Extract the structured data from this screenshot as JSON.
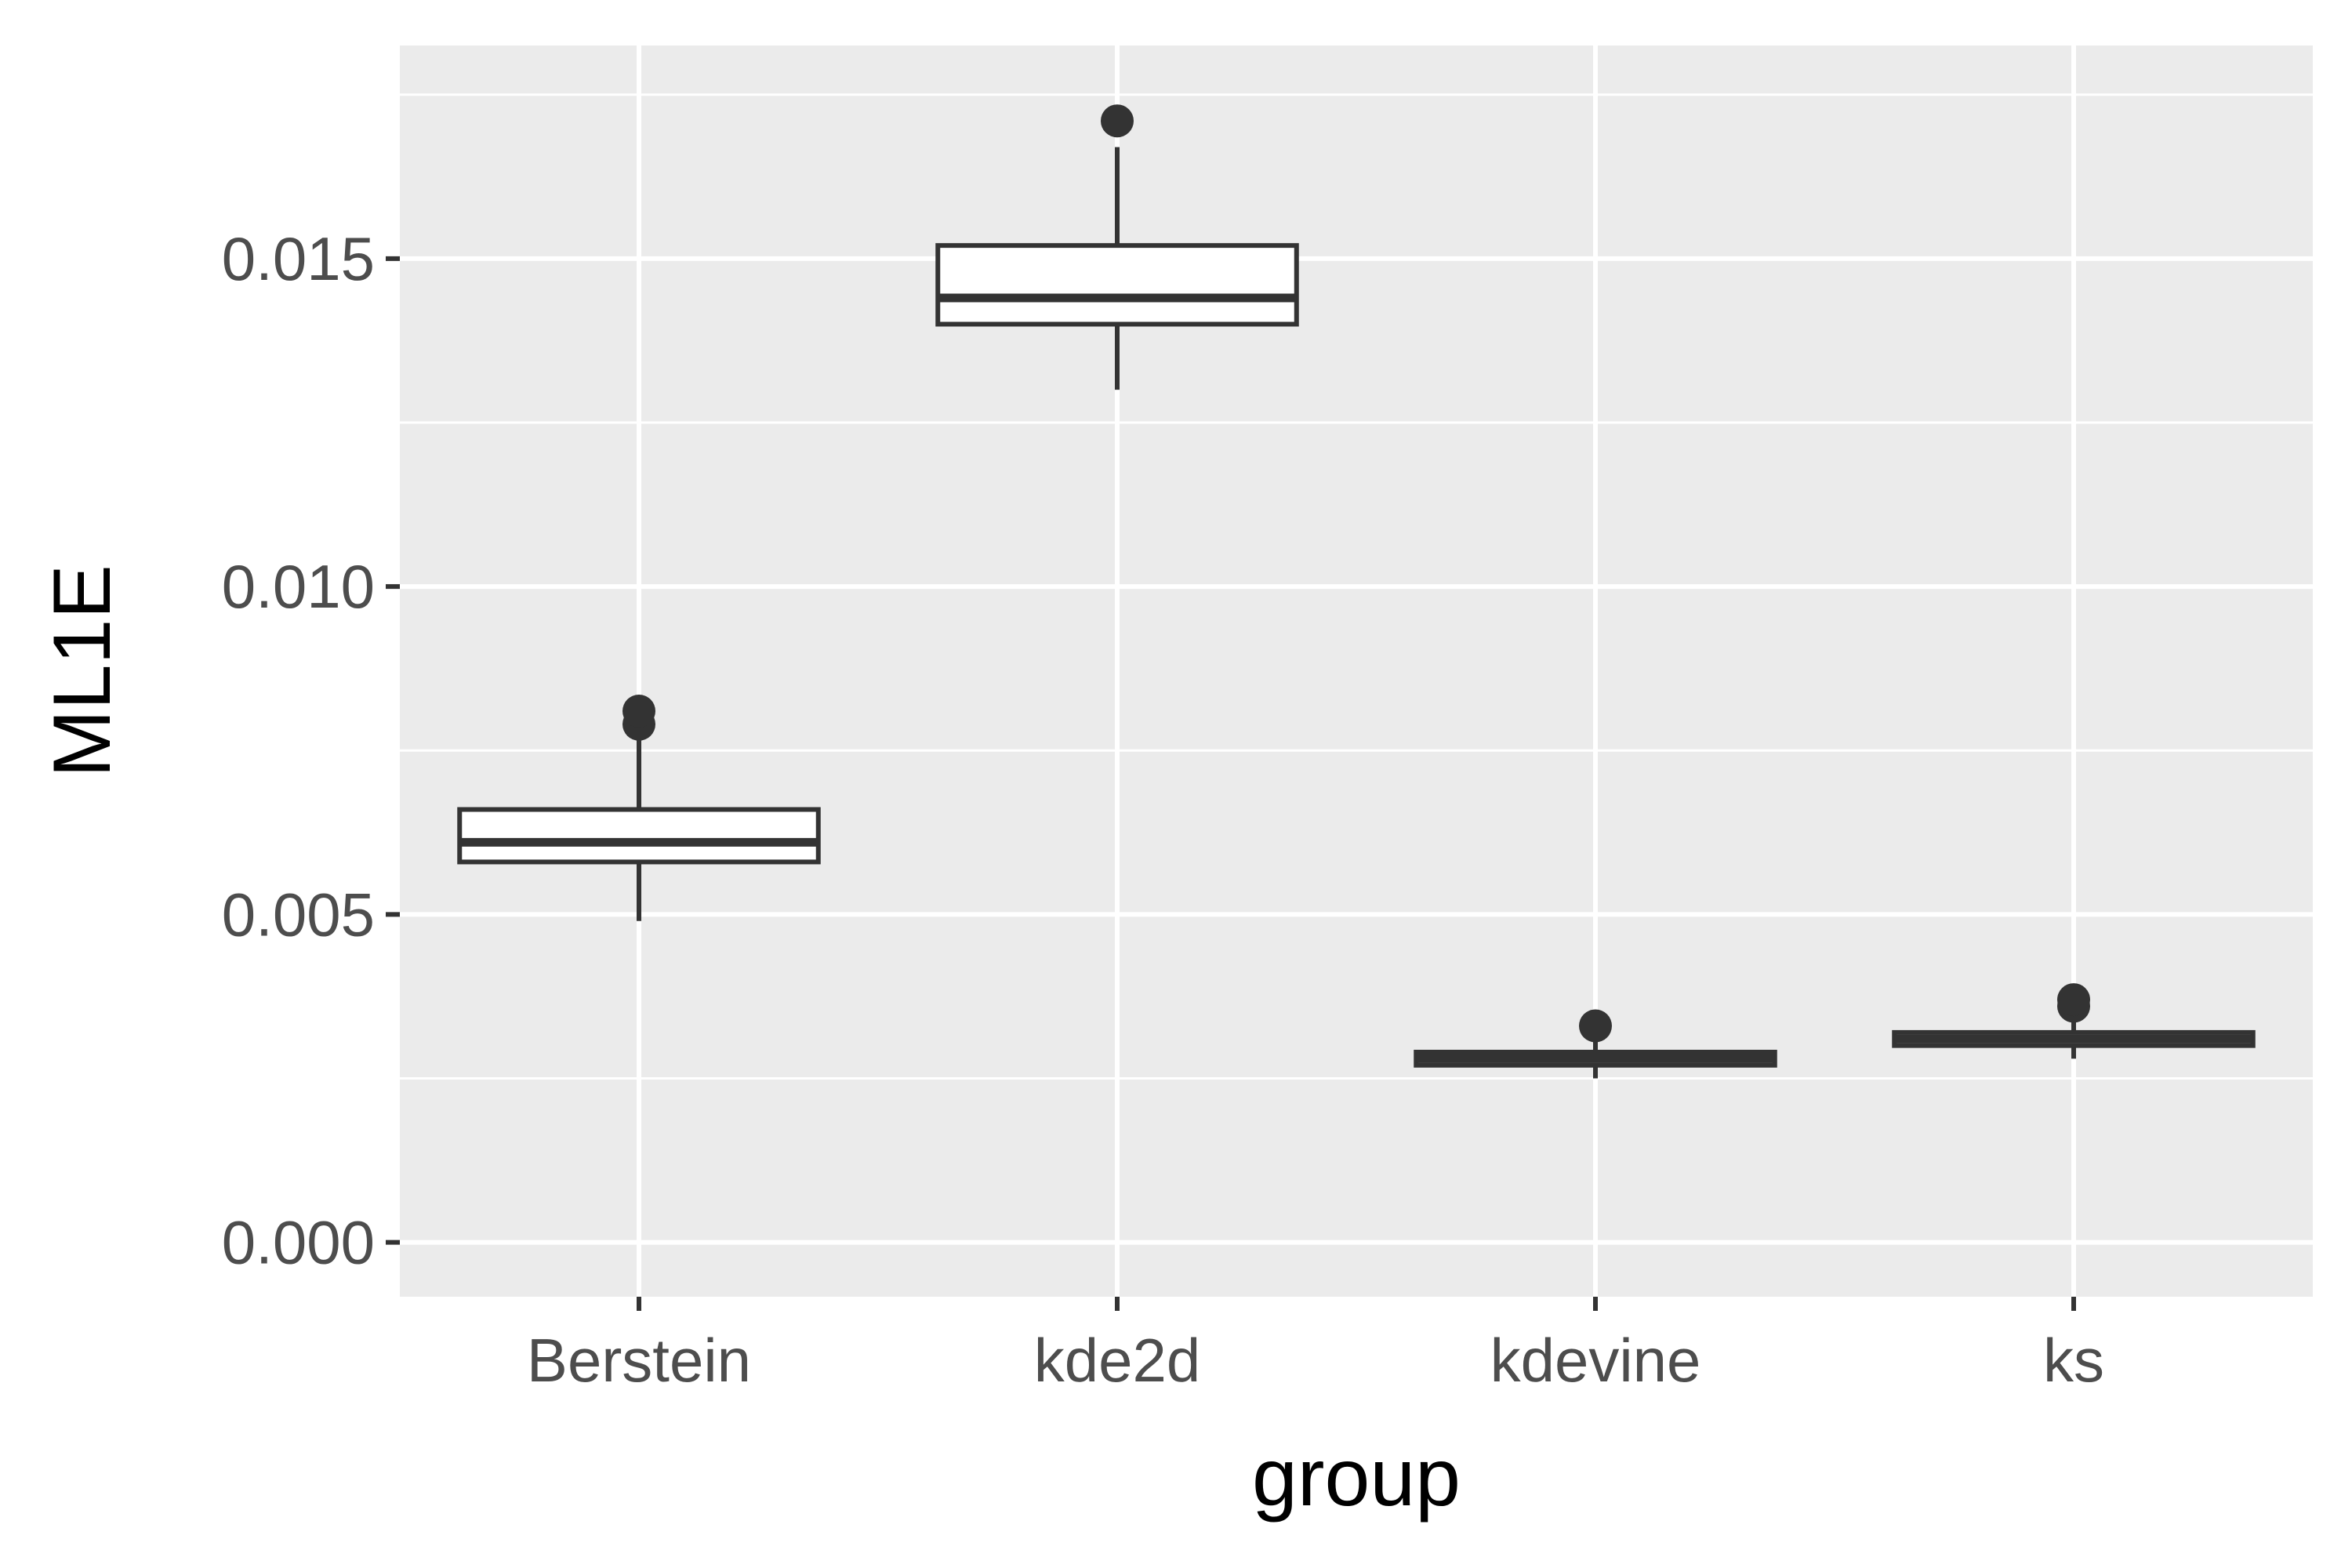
{
  "chart_data": {
    "type": "boxplot",
    "title": "",
    "xlabel": "group",
    "ylabel": "ML1E",
    "categories": [
      "Berstein",
      "kde2d",
      "kdevine",
      "ks"
    ],
    "y_ticks": [
      0.0,
      0.005,
      0.01,
      0.015
    ],
    "y_tick_labels": [
      "0.000",
      "0.005",
      "0.010",
      "0.015"
    ],
    "ylim": [
      -0.00083,
      0.01825
    ],
    "grid": true,
    "legend": "none",
    "series": [
      {
        "category": "Berstein",
        "whisker_low": 0.0049,
        "q1": 0.0058,
        "median": 0.0061,
        "q3": 0.0066,
        "whisker_high": 0.0077,
        "outliers": [
          0.0079,
          0.0081
        ]
      },
      {
        "category": "kde2d",
        "whisker_low": 0.013,
        "q1": 0.014,
        "median": 0.0144,
        "q3": 0.0152,
        "whisker_high": 0.0167,
        "outliers": [
          0.0171
        ]
      },
      {
        "category": "kdevine",
        "whisker_low": 0.0025,
        "q1": 0.0027,
        "median": 0.0028,
        "q3": 0.0029,
        "whisker_high": 0.0031,
        "outliers": [
          0.0033
        ]
      },
      {
        "category": "ks",
        "whisker_low": 0.0028,
        "q1": 0.003,
        "median": 0.0031,
        "q3": 0.0032,
        "whisker_high": 0.0034,
        "outliers": [
          0.0036,
          0.0037
        ]
      }
    ],
    "colors": {
      "panel_background": "#ebebeb",
      "grid": "#ffffff",
      "box_line": "#333333",
      "box_fill": "#ffffff",
      "tick_text": "#4d4d4d",
      "title_text": "#000000"
    }
  }
}
